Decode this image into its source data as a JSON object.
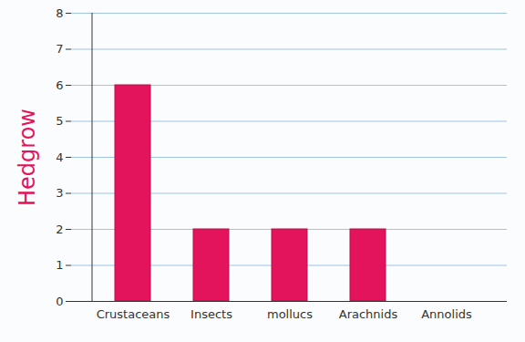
{
  "chart_data": {
    "type": "bar",
    "ylabel": "Hedgrow",
    "categories": [
      "Crustaceans",
      "Insects",
      "mollucs",
      "Arachnids",
      "Annolids"
    ],
    "values": [
      6,
      2,
      2,
      2,
      0
    ],
    "color": "#e3145c",
    "ylim": [
      0,
      8
    ],
    "yticks": [
      0,
      1,
      2,
      3,
      4,
      5,
      6,
      7,
      8
    ],
    "grid": true
  }
}
